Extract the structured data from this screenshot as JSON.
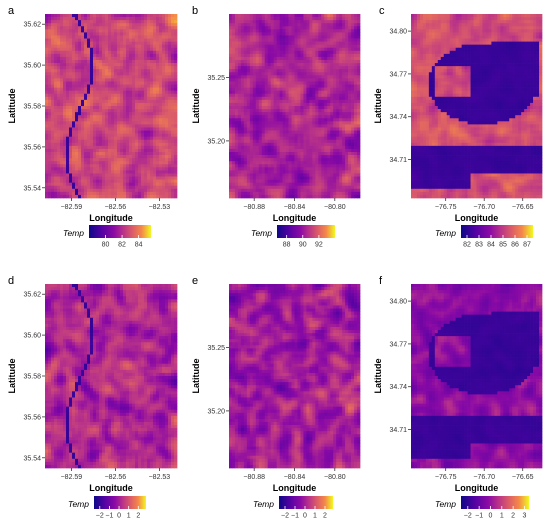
{
  "chart_data": [
    {
      "type": "heatmap",
      "panel_label": "a",
      "xlabel": "Longitude",
      "ylabel": "Latitude",
      "x_ticks": [
        -82.59,
        -82.56,
        -82.53
      ],
      "x_tick_labels": [
        "−82.59",
        "−82.56",
        "−82.53"
      ],
      "y_ticks": [
        35.54,
        35.56,
        35.58,
        35.6,
        35.62
      ],
      "y_tick_labels": [
        "35.54",
        "35.56",
        "35.58",
        "35.60",
        "35.62"
      ],
      "xlim": [
        -82.608,
        -82.518
      ],
      "ylim": [
        35.535,
        35.625
      ],
      "legend_title": "Temp",
      "legend_ticks": [
        80,
        82,
        84
      ],
      "legend_tick_labels": [
        "80",
        "82",
        "84"
      ],
      "value_range": [
        78,
        85.5
      ],
      "colormap": "plasma"
    },
    {
      "type": "heatmap",
      "panel_label": "b",
      "xlabel": "Longitude",
      "ylabel": "Latitude",
      "x_ticks": [
        -80.88,
        -80.84,
        -80.8
      ],
      "x_tick_labels": [
        "−80.88",
        "−80.84",
        "−80.80"
      ],
      "y_ticks": [
        35.2,
        35.25
      ],
      "y_tick_labels": [
        "35.20",
        "35.25"
      ],
      "xlim": [
        -80.905,
        -80.775
      ],
      "ylim": [
        35.155,
        35.3
      ],
      "legend_title": "Temp",
      "legend_ticks": [
        88,
        90,
        92
      ],
      "legend_tick_labels": [
        "88",
        "90",
        "92"
      ],
      "value_range": [
        86.8,
        94
      ],
      "colormap": "plasma"
    },
    {
      "type": "heatmap",
      "panel_label": "c",
      "xlabel": "Longitude",
      "ylabel": "Latitude",
      "x_ticks": [
        -76.75,
        -76.7,
        -76.65
      ],
      "x_tick_labels": [
        "−76.75",
        "−76.70",
        "−76.65"
      ],
      "y_ticks": [
        34.71,
        34.74,
        34.77,
        34.8
      ],
      "y_tick_labels": [
        "34.71",
        "34.74",
        "34.77",
        "34.80"
      ],
      "xlim": [
        -76.795,
        -76.625
      ],
      "ylim": [
        34.683,
        34.812
      ],
      "legend_title": "Temp",
      "legend_ticks": [
        82,
        83,
        84,
        85,
        86,
        87
      ],
      "legend_tick_labels": [
        "82",
        "83",
        "84",
        "85",
        "86",
        "87"
      ],
      "value_range": [
        81.5,
        87.5
      ],
      "colormap": "plasma"
    },
    {
      "type": "heatmap",
      "panel_label": "d",
      "xlabel": "Longitude",
      "ylabel": "Latitude",
      "x_ticks": [
        -82.59,
        -82.56,
        -82.53
      ],
      "x_tick_labels": [
        "−82.59",
        "−82.56",
        "−82.53"
      ],
      "y_ticks": [
        35.54,
        35.56,
        35.58,
        35.6,
        35.62
      ],
      "y_tick_labels": [
        "35.54",
        "35.56",
        "35.58",
        "35.60",
        "35.62"
      ],
      "xlim": [
        -82.608,
        -82.518
      ],
      "ylim": [
        35.535,
        35.625
      ],
      "legend_title": "Temp",
      "legend_ticks": [
        -2,
        -1,
        0,
        1,
        2
      ],
      "legend_tick_labels": [
        "−2",
        "−1",
        "0",
        "1",
        "2"
      ],
      "value_range": [
        -2.6,
        2.8
      ],
      "colormap": "plasma"
    },
    {
      "type": "heatmap",
      "panel_label": "e",
      "xlabel": "Longitude",
      "ylabel": "Latitude",
      "x_ticks": [
        -80.88,
        -80.84,
        -80.8
      ],
      "x_tick_labels": [
        "−80.88",
        "−80.84",
        "−80.80"
      ],
      "y_ticks": [
        35.2,
        35.25
      ],
      "y_tick_labels": [
        "35.20",
        "35.25"
      ],
      "xlim": [
        -80.905,
        -80.775
      ],
      "ylim": [
        35.155,
        35.3
      ],
      "legend_title": "Temp",
      "legend_ticks": [
        -2,
        -1,
        0,
        1,
        2
      ],
      "legend_tick_labels": [
        "−2",
        "−1",
        "0",
        "1",
        "2"
      ],
      "value_range": [
        -2.6,
        2.8
      ],
      "colormap": "plasma"
    },
    {
      "type": "heatmap",
      "panel_label": "f",
      "xlabel": "Longitude",
      "ylabel": "Latitude",
      "x_ticks": [
        -76.75,
        -76.7,
        -76.65
      ],
      "x_tick_labels": [
        "−76.75",
        "−76.70",
        "−76.65"
      ],
      "y_ticks": [
        34.71,
        34.74,
        34.77,
        34.8
      ],
      "y_tick_labels": [
        "34.71",
        "34.74",
        "34.77",
        "34.80"
      ],
      "xlim": [
        -76.795,
        -76.625
      ],
      "ylim": [
        34.683,
        34.812
      ],
      "legend_title": "Temp",
      "legend_ticks": [
        -2,
        -1,
        0,
        1,
        2,
        3
      ],
      "legend_tick_labels": [
        "−2",
        "−1",
        "0",
        "1",
        "2",
        "3"
      ],
      "value_range": [
        -2.6,
        3.4
      ],
      "colormap": "plasma"
    }
  ]
}
